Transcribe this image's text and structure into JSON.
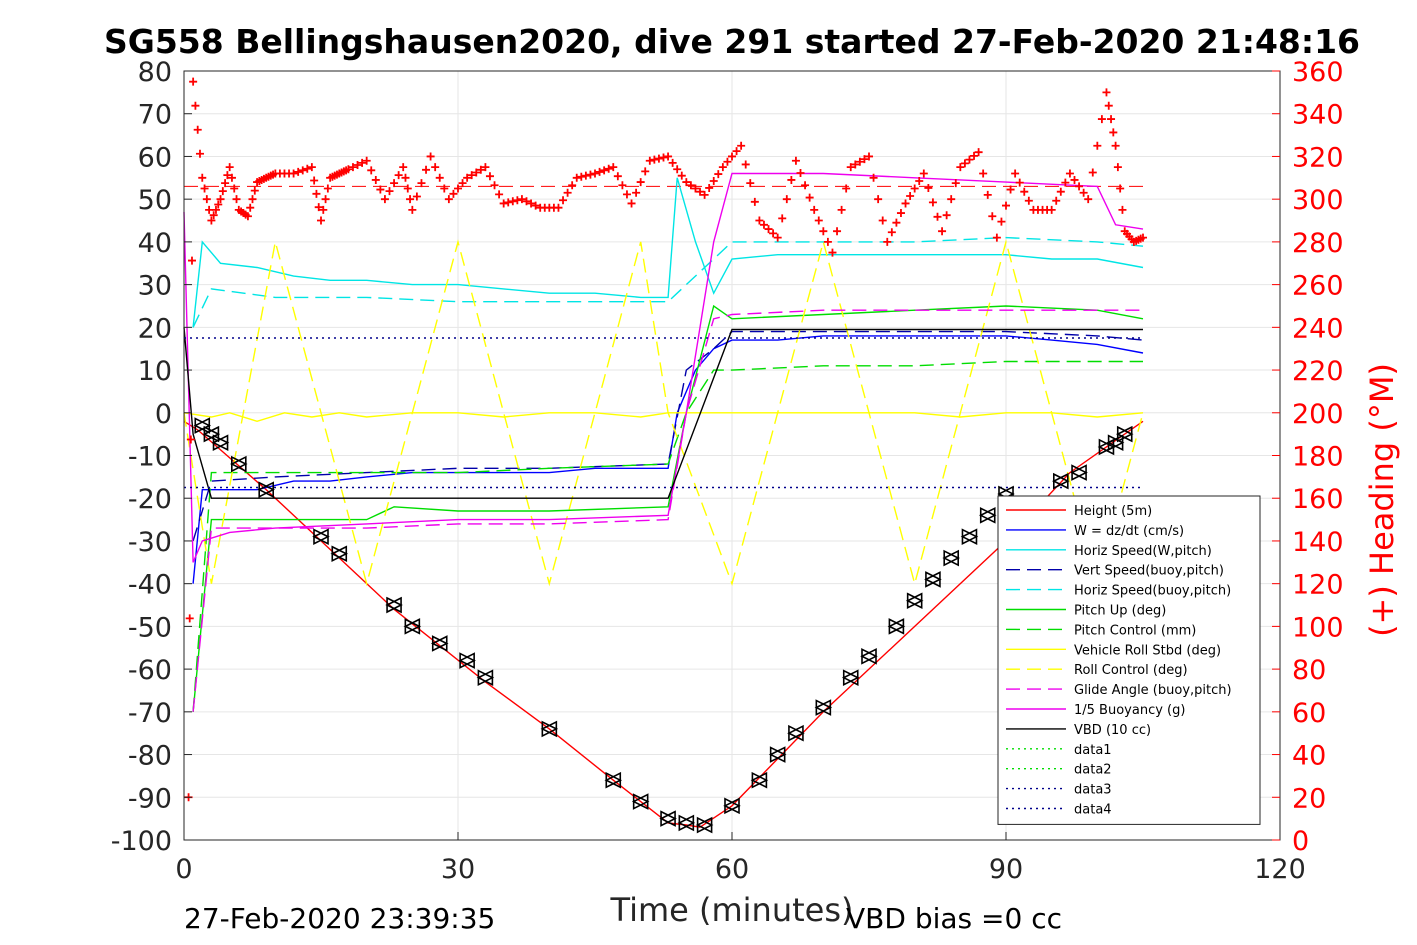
{
  "chart_data": {
    "type": "line",
    "title": "SG558 Bellingshausen2020, dive 291 started 27-Feb-2020 21:48:16",
    "xlabel": "Time (minutes)",
    "ylabel": "",
    "y2label": "(+) Heading (°M)",
    "xlim": [
      0,
      120
    ],
    "ylim": [
      -100,
      80
    ],
    "y2lim": [
      0,
      360
    ],
    "x_ticks": [
      "0",
      "30",
      "60",
      "90",
      "120"
    ],
    "y_ticks": [
      "80",
      "70",
      "60",
      "50",
      "40",
      "30",
      "20",
      "10",
      "0",
      "-10",
      "-20",
      "-30",
      "-40",
      "-50",
      "-60",
      "-70",
      "-80",
      "-90",
      "-100"
    ],
    "y2_ticks": [
      "360",
      "340",
      "320",
      "300",
      "280",
      "260",
      "240",
      "220",
      "200",
      "180",
      "160",
      "140",
      "120",
      "100",
      "80",
      "60",
      "40",
      "20",
      "0"
    ],
    "grid": true,
    "legend_position": "bottom-right",
    "footer_left": "27-Feb-2020 23:39:35",
    "footer_right": "VBD bias =0 cc",
    "colors": {
      "red": "#ff0000",
      "blue": "#0000ff",
      "cyan": "#00e5e5",
      "green": "#00dd00",
      "yellow": "#ffff00",
      "magenta": "#ee00ee",
      "black": "#000000",
      "navy": "#00008b"
    },
    "series": [
      {
        "name": "Height (5m)",
        "color": "#ff0000",
        "style": "solid",
        "x": [
          0,
          1.5,
          9,
          15,
          23,
          33,
          40,
          47,
          53,
          55,
          56.5,
          60,
          70,
          80,
          90,
          97,
          103,
          105
        ],
        "y": [
          -2,
          -4,
          -18,
          -30,
          -46,
          -63,
          -74,
          -86,
          -96,
          -96.5,
          -97,
          -92,
          -70,
          -50,
          -30,
          -14,
          -5,
          -2
        ]
      },
      {
        "name": "W = dz/dt (cm/s)",
        "color": "#0000ff",
        "style": "solid",
        "x": [
          1,
          2,
          4,
          8,
          12,
          16,
          20,
          25,
          30,
          35,
          40,
          45,
          50,
          53,
          54,
          56,
          58,
          60,
          65,
          70,
          75,
          80,
          85,
          90,
          95,
          100,
          105
        ],
        "y": [
          -40,
          -18,
          -18,
          -18,
          -16,
          -16,
          -15,
          -14,
          -14,
          -14,
          -14,
          -13,
          -13,
          -13,
          0,
          10,
          15,
          17,
          17,
          18,
          18,
          18,
          18,
          18,
          17,
          16,
          14
        ]
      },
      {
        "name": "Horiz Speed(W,pitch)",
        "color": "#00e5e5",
        "style": "solid",
        "x": [
          1,
          2,
          4,
          8,
          12,
          16,
          20,
          25,
          30,
          35,
          40,
          45,
          50,
          53,
          54,
          56,
          58,
          60,
          65,
          70,
          75,
          80,
          85,
          90,
          95,
          100,
          105
        ],
        "y": [
          20,
          40,
          35,
          34,
          32,
          31,
          31,
          30,
          30,
          29,
          28,
          28,
          27,
          27,
          55,
          40,
          28,
          36,
          37,
          37,
          37,
          37,
          37,
          37,
          36,
          36,
          34
        ]
      },
      {
        "name": "Vert Speed(buoy,pitch)",
        "color": "#0000aa",
        "style": "dashed",
        "x": [
          1,
          3,
          10,
          20,
          30,
          40,
          53,
          55,
          58,
          60,
          70,
          80,
          90,
          100,
          105
        ],
        "y": [
          -30,
          -16,
          -15,
          -14,
          -13,
          -13,
          -12,
          10,
          15,
          19,
          19,
          19,
          19,
          18,
          17
        ]
      },
      {
        "name": "Horiz Speed(buoy,pitch)",
        "color": "#00e5e5",
        "style": "dashed",
        "x": [
          1,
          3,
          10,
          20,
          30,
          40,
          53,
          55,
          58,
          60,
          70,
          80,
          90,
          100,
          105
        ],
        "y": [
          20,
          29,
          27,
          27,
          26,
          26,
          26,
          30,
          36,
          40,
          40,
          40,
          41,
          40,
          39
        ]
      },
      {
        "name": "Pitch Up (deg)",
        "color": "#00dd00",
        "style": "solid",
        "x": [
          1,
          3,
          10,
          20,
          23,
          30,
          40,
          53,
          55,
          58,
          60,
          70,
          80,
          90,
          100,
          105
        ],
        "y": [
          -70,
          -25,
          -25,
          -25,
          -22,
          -23,
          -23,
          -22,
          0,
          25,
          22,
          23,
          24,
          25,
          24,
          22
        ]
      },
      {
        "name": "Pitch Control (mm)",
        "color": "#00dd00",
        "style": "dashed",
        "x": [
          1,
          3,
          10,
          20,
          30,
          40,
          53,
          55,
          58,
          60,
          70,
          80,
          90,
          100,
          105
        ],
        "y": [
          -70,
          -14,
          -14,
          -14,
          -14,
          -13,
          -12,
          0,
          10,
          10,
          11,
          11,
          12,
          12,
          12
        ]
      },
      {
        "name": "Vehicle Roll Stbd (deg)",
        "color": "#ffff00",
        "style": "solid",
        "x": [
          0,
          3,
          5,
          8,
          11,
          14,
          17,
          20,
          25,
          30,
          35,
          40,
          45,
          50,
          53,
          56,
          60,
          65,
          70,
          75,
          80,
          85,
          90,
          95,
          100,
          105
        ],
        "y": [
          0,
          -1,
          0,
          -2,
          0,
          -1,
          0,
          -1,
          0,
          0,
          -1,
          0,
          0,
          -1,
          0,
          0,
          0,
          0,
          0,
          0,
          0,
          -1,
          0,
          0,
          -1,
          0
        ]
      },
      {
        "name": "Roll Control (deg)",
        "color": "#ffff00",
        "style": "dashed",
        "x": [
          0,
          3,
          10,
          20,
          30,
          40,
          50,
          53,
          60,
          70,
          80,
          90,
          100,
          105
        ],
        "y": [
          0,
          -40,
          40,
          -40,
          40,
          -40,
          40,
          0,
          -40,
          40,
          -40,
          40,
          -40,
          0
        ]
      },
      {
        "name": "Glide Angle (buoy,pitch)",
        "color": "#ee00ee",
        "style": "dashed",
        "x": [
          1,
          3,
          10,
          20,
          30,
          40,
          53,
          55,
          58,
          60,
          70,
          80,
          90,
          100,
          105
        ],
        "y": [
          -70,
          -27,
          -27,
          -27,
          -26,
          -26,
          -25,
          0,
          22,
          23,
          24,
          24,
          24,
          24,
          24
        ]
      },
      {
        "name": "1/5 Buoyancy (g)",
        "color": "#ee00ee",
        "style": "solid",
        "x": [
          0,
          1,
          2,
          5,
          10,
          20,
          30,
          40,
          53,
          55,
          58,
          60,
          70,
          80,
          90,
          100,
          102,
          105
        ],
        "y": [
          47,
          -35,
          -30,
          -28,
          -27,
          -26,
          -25,
          -25,
          -24,
          0,
          40,
          56,
          56,
          55,
          54,
          53,
          44,
          43
        ]
      },
      {
        "name": "VBD (10 cc)",
        "color": "#000000",
        "style": "solid",
        "x": [
          0,
          1,
          3,
          53,
          60,
          105
        ],
        "y": [
          20,
          -5,
          -20,
          -20,
          19.5,
          19.5
        ]
      },
      {
        "name": "data1",
        "color": "#00dd00",
        "style": "dotted",
        "x": [],
        "y": []
      },
      {
        "name": "data2",
        "color": "#00dd00",
        "style": "dotted",
        "x": [],
        "y": []
      },
      {
        "name": "data3",
        "color": "#00008b",
        "style": "dotted",
        "x": [
          0,
          105
        ],
        "y": [
          17.5,
          17.5
        ]
      },
      {
        "name": "data4",
        "color": "#00008b",
        "style": "dotted",
        "x": [
          0,
          105
        ],
        "y": [
          -17.5,
          -17.5
        ]
      }
    ],
    "heading_mean_line": {
      "y2": 306,
      "x": [
        0,
        105
      ],
      "color": "#ff0000",
      "style": "dashed"
    },
    "heading": {
      "marker": "+",
      "color": "#ff0000",
      "x": [
        0.5,
        1,
        2,
        3,
        4,
        5,
        6,
        7,
        8,
        9,
        10,
        12,
        14,
        15,
        16,
        17,
        18,
        20,
        22,
        24,
        25,
        27,
        29,
        31,
        33,
        35,
        37,
        39,
        41,
        43,
        45,
        47,
        49,
        51,
        53,
        55,
        57,
        59,
        61,
        63,
        65,
        67,
        69,
        71,
        73,
        75,
        77,
        79,
        81,
        83,
        85,
        87,
        89,
        91,
        93,
        95,
        97,
        99,
        101,
        102,
        103,
        104,
        105
      ],
      "y2": [
        20,
        355,
        310,
        290,
        300,
        315,
        295,
        292,
        308,
        310,
        312,
        312,
        315,
        290,
        310,
        312,
        314,
        318,
        300,
        315,
        295,
        320,
        300,
        310,
        315,
        298,
        300,
        296,
        296,
        310,
        312,
        315,
        298,
        318,
        320,
        308,
        302,
        315,
        325,
        290,
        282,
        318,
        295,
        275,
        315,
        320,
        280,
        298,
        312,
        285,
        315,
        322,
        282,
        312,
        295,
        295,
        312,
        300,
        350,
        325,
        285,
        280,
        282
      ]
    },
    "markers": {
      "type": "triangle-pairs",
      "color": "#000000",
      "x": [
        2,
        3,
        4,
        6,
        9,
        15,
        17,
        23,
        25,
        28,
        31,
        33,
        40,
        47,
        50,
        53,
        55,
        57,
        60,
        63,
        65,
        67,
        70,
        73,
        75,
        78,
        80,
        82,
        84,
        86,
        88,
        90,
        96,
        98,
        101,
        102,
        103
      ],
      "y": [
        -3,
        -5,
        -7,
        -12,
        -18,
        -29,
        -33,
        -45,
        -50,
        -54,
        -58,
        -62,
        -74,
        -86,
        -91,
        -95,
        -96,
        -96.5,
        -92,
        -86,
        -80,
        -75,
        -69,
        -62,
        -57,
        -50,
        -44,
        -39,
        -34,
        -29,
        -24,
        -19,
        -16,
        -14,
        -8,
        -7,
        -5
      ]
    }
  }
}
